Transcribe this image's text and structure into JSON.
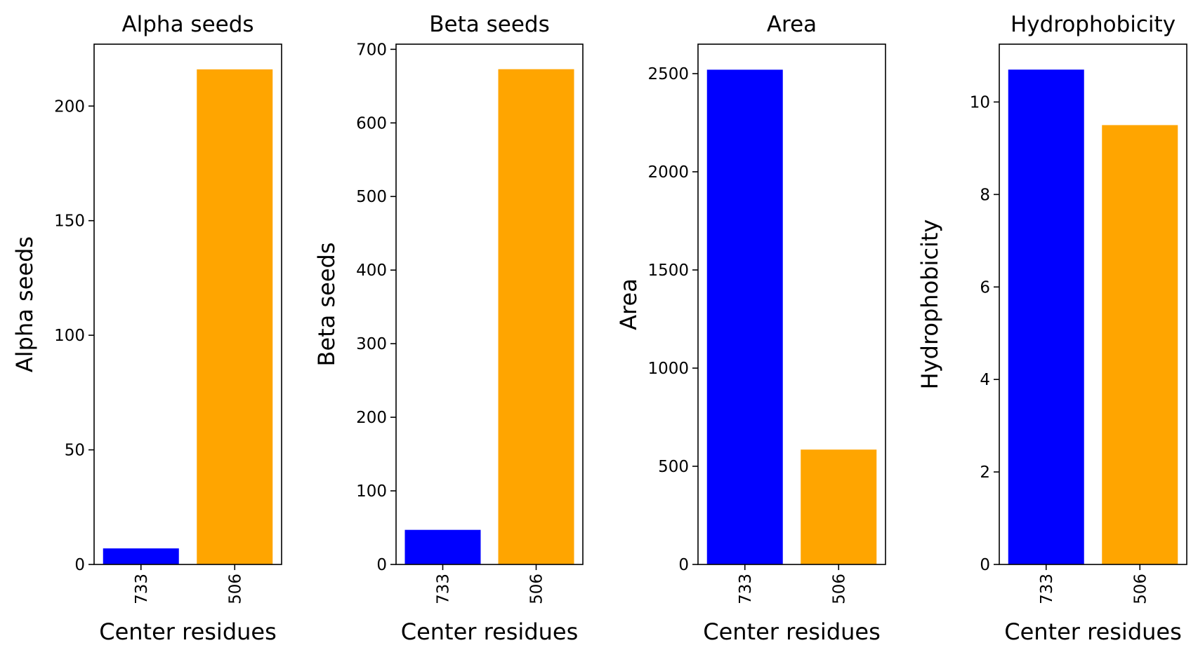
{
  "chart_data": [
    {
      "type": "bar",
      "title": "Alpha seeds",
      "xlabel": "Center residues",
      "ylabel": "Alpha seeds",
      "categories": [
        "733",
        "506"
      ],
      "values": [
        7,
        216
      ],
      "colors": [
        "#0000ff",
        "#ffa500"
      ],
      "ylim": [
        0,
        227
      ],
      "yticks": [
        0,
        50,
        100,
        150,
        200
      ],
      "grid": false
    },
    {
      "type": "bar",
      "title": "Beta seeds",
      "xlabel": "Center residues",
      "ylabel": "Beta seeds",
      "categories": [
        "733",
        "506"
      ],
      "values": [
        47,
        673
      ],
      "colors": [
        "#0000ff",
        "#ffa500"
      ],
      "ylim": [
        0,
        707
      ],
      "yticks": [
        0,
        100,
        200,
        300,
        400,
        500,
        600,
        700
      ],
      "grid": false
    },
    {
      "type": "bar",
      "title": "Area",
      "xlabel": "Center residues",
      "ylabel": "Area",
      "categories": [
        "733",
        "506"
      ],
      "values": [
        2520,
        585
      ],
      "colors": [
        "#0000ff",
        "#ffa500"
      ],
      "ylim": [
        0,
        2650
      ],
      "yticks": [
        0,
        500,
        1000,
        1500,
        2000,
        2500
      ],
      "grid": false
    },
    {
      "type": "bar",
      "title": "Hydrophobicity",
      "xlabel": "Center residues",
      "ylabel": "Hydrophobicity",
      "categories": [
        "733",
        "506"
      ],
      "values": [
        10.7,
        9.5
      ],
      "colors": [
        "#0000ff",
        "#ffa500"
      ],
      "ylim": [
        0,
        11.25
      ],
      "yticks": [
        0,
        2,
        4,
        6,
        8,
        10
      ],
      "grid": false
    }
  ]
}
